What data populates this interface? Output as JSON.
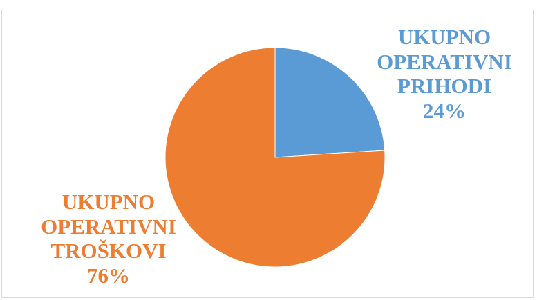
{
  "chart_data": {
    "type": "pie",
    "title": "",
    "start_angle_deg": 0,
    "direction": "clockwise",
    "slices": [
      {
        "name_lines": [
          "UKUPNO",
          "OPERATIVNI",
          "PRIHODI"
        ],
        "percent_label": "24%",
        "value": 24,
        "color": "#5b9bd5"
      },
      {
        "name_lines": [
          "UKUPNO",
          "OPERATIVNI",
          "TROŠKOVI"
        ],
        "percent_label": "76%",
        "value": 76,
        "color": "#ed7d31"
      }
    ],
    "legend": "none",
    "data_labels": "category name and percentage, outside slices"
  }
}
